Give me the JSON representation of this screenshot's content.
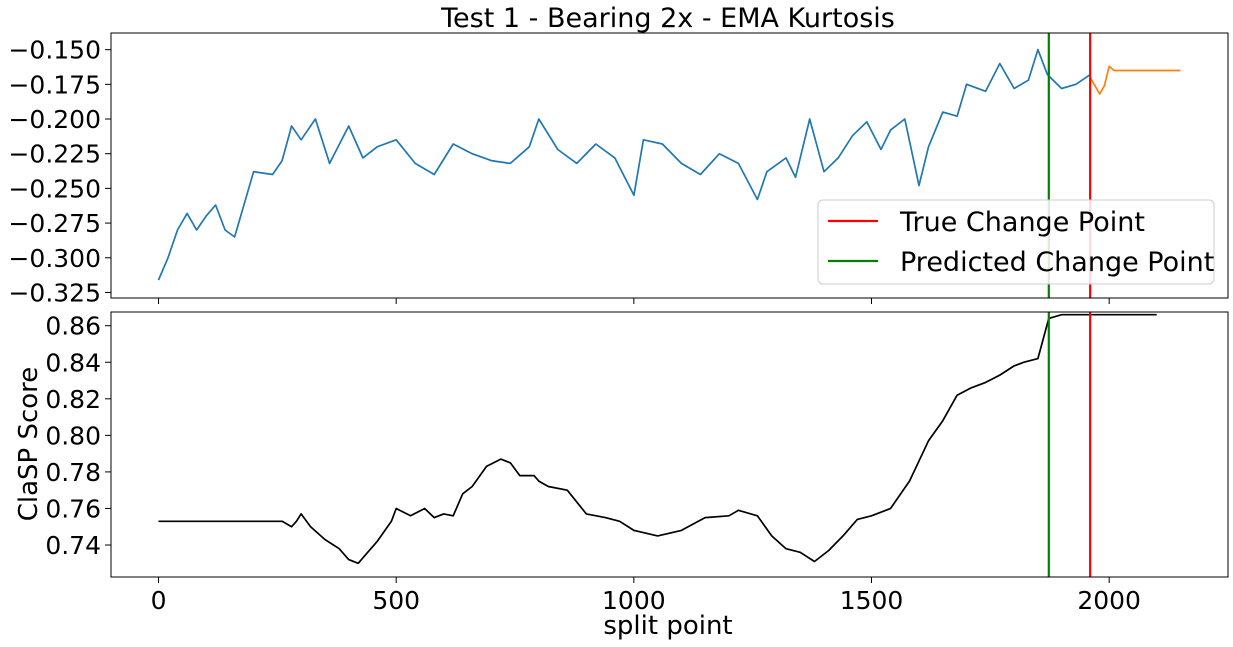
{
  "chart_data": [
    {
      "type": "line",
      "title": "Test 1 - Bearing 2x - EMA Kurtosis",
      "xlim": [
        -100,
        2250
      ],
      "ylim": [
        -0.329,
        -0.138
      ],
      "yticks": [
        -0.15,
        -0.175,
        -0.2,
        -0.225,
        -0.25,
        -0.275,
        -0.3,
        -0.325
      ],
      "ytick_labels": [
        "−0.150",
        "−0.175",
        "−0.200",
        "−0.225",
        "−0.250",
        "−0.275",
        "−0.300",
        "−0.325"
      ],
      "grid": false,
      "legend_position": "lower-right",
      "series": [
        {
          "color": "#1f77b4",
          "x": [
            0,
            20,
            40,
            60,
            80,
            100,
            120,
            140,
            160,
            200,
            240,
            260,
            280,
            300,
            330,
            360,
            400,
            430,
            460,
            500,
            540,
            580,
            620,
            660,
            700,
            740,
            780,
            800,
            840,
            880,
            920,
            960,
            1000,
            1020,
            1060,
            1100,
            1140,
            1180,
            1220,
            1260,
            1280,
            1320,
            1340,
            1370,
            1400,
            1430,
            1460,
            1490,
            1520,
            1540,
            1570,
            1600,
            1620,
            1650,
            1680,
            1700,
            1740,
            1770,
            1800,
            1830,
            1850,
            1870,
            1900,
            1930,
            1960
          ],
          "y": [
            -0.316,
            -0.3,
            -0.28,
            -0.268,
            -0.28,
            -0.27,
            -0.262,
            -0.28,
            -0.285,
            -0.238,
            -0.24,
            -0.23,
            -0.205,
            -0.215,
            -0.2,
            -0.232,
            -0.205,
            -0.228,
            -0.22,
            -0.215,
            -0.232,
            -0.24,
            -0.218,
            -0.225,
            -0.23,
            -0.232,
            -0.22,
            -0.2,
            -0.222,
            -0.232,
            -0.218,
            -0.228,
            -0.255,
            -0.215,
            -0.218,
            -0.232,
            -0.24,
            -0.225,
            -0.232,
            -0.258,
            -0.238,
            -0.228,
            -0.242,
            -0.2,
            -0.238,
            -0.228,
            -0.212,
            -0.202,
            -0.222,
            -0.208,
            -0.2,
            -0.248,
            -0.22,
            -0.195,
            -0.198,
            -0.175,
            -0.18,
            -0.16,
            -0.178,
            -0.172,
            -0.15,
            -0.168,
            -0.178,
            -0.175,
            -0.168
          ]
        },
        {
          "color": "#ff7f0e",
          "x": [
            1960,
            1970,
            1980,
            1990,
            2000,
            2010,
            2050,
            2100,
            2150
          ],
          "y": [
            -0.17,
            -0.176,
            -0.182,
            -0.176,
            -0.162,
            -0.165,
            -0.165,
            -0.165,
            -0.165
          ]
        }
      ],
      "vlines": [
        {
          "name": "True Change Point",
          "x": 1960,
          "color": "#ff0000"
        },
        {
          "name": "Predicted Change Point",
          "x": 1873,
          "color": "#008000"
        }
      ]
    },
    {
      "type": "line",
      "xlabel": "split point",
      "ylabel": "ClaSP Score",
      "xlim": [
        -100,
        2250
      ],
      "ylim": [
        0.7225,
        0.8675
      ],
      "xticks": [
        0,
        500,
        1000,
        1500,
        2000
      ],
      "xtick_labels": [
        "0",
        "500",
        "1000",
        "1500",
        "2000"
      ],
      "yticks": [
        0.74,
        0.76,
        0.78,
        0.8,
        0.82,
        0.84,
        0.86
      ],
      "ytick_labels": [
        "0.74",
        "0.76",
        "0.78",
        "0.80",
        "0.82",
        "0.84",
        "0.86"
      ],
      "grid": false,
      "series": [
        {
          "color": "#000000",
          "x": [
            0,
            100,
            200,
            260,
            280,
            290,
            300,
            320,
            350,
            380,
            400,
            420,
            440,
            460,
            490,
            500,
            530,
            560,
            580,
            600,
            620,
            640,
            660,
            690,
            720,
            740,
            760,
            790,
            800,
            820,
            860,
            900,
            940,
            970,
            1000,
            1050,
            1100,
            1150,
            1200,
            1220,
            1260,
            1290,
            1320,
            1350,
            1380,
            1410,
            1440,
            1470,
            1500,
            1540,
            1580,
            1620,
            1650,
            1680,
            1710,
            1740,
            1770,
            1800,
            1820,
            1850,
            1873,
            1900,
            1960,
            2000,
            2100
          ],
          "y": [
            0.753,
            0.753,
            0.753,
            0.753,
            0.75,
            0.753,
            0.757,
            0.75,
            0.743,
            0.738,
            0.732,
            0.73,
            0.736,
            0.742,
            0.753,
            0.76,
            0.756,
            0.76,
            0.755,
            0.757,
            0.756,
            0.768,
            0.772,
            0.783,
            0.787,
            0.785,
            0.778,
            0.778,
            0.775,
            0.772,
            0.77,
            0.757,
            0.755,
            0.753,
            0.748,
            0.745,
            0.748,
            0.755,
            0.756,
            0.759,
            0.756,
            0.745,
            0.738,
            0.736,
            0.731,
            0.737,
            0.745,
            0.754,
            0.756,
            0.76,
            0.775,
            0.797,
            0.808,
            0.822,
            0.826,
            0.829,
            0.833,
            0.838,
            0.84,
            0.842,
            0.864,
            0.866,
            0.866,
            0.866,
            0.866
          ]
        }
      ],
      "vlines": [
        {
          "x": 1960,
          "color": "#ff0000"
        },
        {
          "x": 1873,
          "color": "#008000"
        }
      ]
    }
  ]
}
